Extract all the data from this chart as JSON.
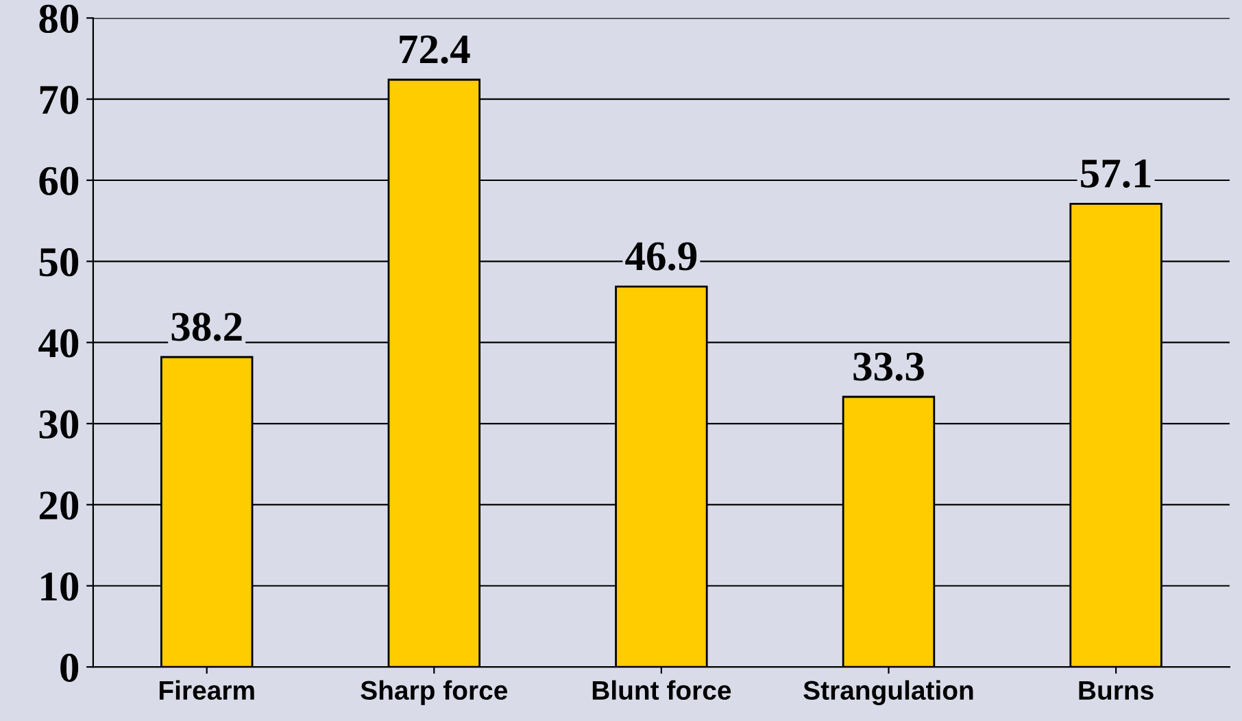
{
  "chart_data": {
    "type": "bar",
    "categories": [
      "Firearm",
      "Sharp force",
      "Blunt force",
      "Strangulation",
      "Burns"
    ],
    "values": [
      38.2,
      72.4,
      46.9,
      33.3,
      57.1
    ],
    "color": "#ffcc00",
    "ylim": [
      0,
      80
    ],
    "yticks": [
      0,
      10,
      20,
      30,
      40,
      50,
      60,
      70,
      80
    ],
    "grid": "y",
    "data_labels": true
  }
}
